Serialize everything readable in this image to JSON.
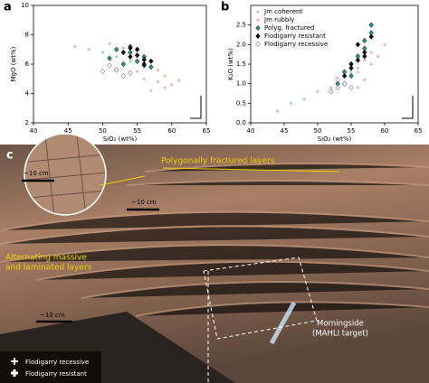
{
  "chart_data": [
    {
      "type": "scatter",
      "label": "a",
      "xlabel": "SiO₂ (wt%)",
      "ylabel": "MgO (wt%)",
      "xlim": [
        40,
        65
      ],
      "xticks": [
        40,
        45,
        50,
        55,
        60,
        65
      ],
      "ylim": [
        2,
        10
      ],
      "yticks": [
        2,
        4,
        6,
        8,
        10
      ],
      "series": [
        {
          "color": "#a8d8b0",
          "marker": "dot",
          "x": [
            46,
            48,
            50,
            51,
            52,
            53,
            54,
            55,
            56,
            57
          ],
          "values": [
            7.2,
            7.0,
            6.8,
            7.4,
            6.5,
            7.1,
            6.2,
            6.6,
            6.0,
            5.8
          ]
        },
        {
          "color": "#f2b8b8",
          "marker": "dot",
          "x": [
            55,
            56,
            57,
            58,
            59,
            60,
            57,
            58,
            59,
            61
          ],
          "values": [
            5.5,
            5.0,
            5.8,
            4.8,
            5.2,
            4.6,
            4.2,
            5.6,
            4.4,
            4.9
          ]
        },
        {
          "color": "#2f8f9a",
          "marker": "diamond",
          "x": [
            51,
            52,
            53,
            54,
            55,
            56,
            57,
            54,
            52,
            56
          ],
          "values": [
            6.4,
            7.0,
            6.0,
            6.8,
            6.2,
            6.5,
            5.8,
            7.2,
            5.6,
            5.9
          ]
        },
        {
          "color": "#111111",
          "marker": "diamond",
          "x": [
            53,
            54,
            55,
            56,
            55,
            54,
            56,
            57
          ],
          "values": [
            6.8,
            6.5,
            7.0,
            6.3,
            6.6,
            7.1,
            6.0,
            6.2
          ]
        },
        {
          "color": "#333333",
          "marker": "open-diamond",
          "x": [
            50,
            51,
            53,
            52,
            54
          ],
          "values": [
            5.5,
            5.9,
            5.2,
            5.6,
            5.4
          ]
        }
      ]
    },
    {
      "type": "scatter",
      "label": "b",
      "xlabel": "SiO₂ (wt%)",
      "ylabel": "K₂O (wt%)",
      "legend": "upper left",
      "xlim": [
        40,
        65
      ],
      "xticks": [
        40,
        45,
        50,
        55,
        60,
        65
      ],
      "ylim": [
        0,
        3.0
      ],
      "yticks": [
        {
          "value": 0,
          "label": "0.0"
        },
        {
          "value": 0.5,
          "label": "0.5"
        },
        {
          "value": 1,
          "label": "1.0"
        },
        {
          "value": 1.5,
          "label": "1.5"
        },
        {
          "value": 2,
          "label": "2.0"
        },
        {
          "value": 2.5,
          "label": "2.5"
        }
      ],
      "series": [
        {
          "name": "Jm coherent",
          "color": "#a8d8b0",
          "marker": "dot",
          "x": [
            44,
            46,
            48,
            50,
            52,
            53,
            54,
            55,
            56,
            57
          ],
          "values": [
            0.3,
            0.5,
            0.6,
            0.8,
            0.9,
            1.0,
            1.2,
            1.3,
            1.4,
            1.6
          ]
        },
        {
          "name": "Jm rubbly",
          "color": "#f2b8b8",
          "marker": "dot",
          "x": [
            54,
            55,
            56,
            57,
            58,
            59,
            60,
            58,
            57,
            56
          ],
          "values": [
            1.2,
            1.4,
            1.3,
            1.6,
            1.8,
            1.7,
            2.0,
            1.5,
            1.1,
            0.9
          ]
        },
        {
          "name": "Polyg. fractured",
          "color": "#2f8f9a",
          "marker": "diamond",
          "x": [
            53,
            54,
            55,
            56,
            57,
            58,
            58,
            57,
            55,
            54
          ],
          "values": [
            1.0,
            1.3,
            1.5,
            1.7,
            1.9,
            2.3,
            2.5,
            2.1,
            1.2,
            1.0
          ]
        },
        {
          "name": "Flodigarry resistant",
          "color": "#111111",
          "marker": "diamond",
          "x": [
            54,
            55,
            56,
            57,
            56,
            55,
            57,
            58
          ],
          "values": [
            1.2,
            1.5,
            1.6,
            1.8,
            2.0,
            1.4,
            1.7,
            2.2
          ]
        },
        {
          "name": "Flodigarry recessive",
          "color": "#333333",
          "marker": "open-diamond",
          "x": [
            52,
            53,
            54,
            55,
            53
          ],
          "values": [
            0.8,
            0.9,
            1.0,
            0.9,
            1.1
          ]
        }
      ]
    }
  ],
  "photo": {
    "label": "c",
    "scale_labels": [
      "~10 cm",
      "~10 cm",
      "~10 cm"
    ],
    "annotations": [
      "Polygonally fractured layers",
      "Alternating massive",
      "and laminated layers",
      "Morningside",
      "(MAHLI target)"
    ],
    "legend": [
      "Flodigarry recessive",
      "Flodigarry resistant"
    ]
  }
}
